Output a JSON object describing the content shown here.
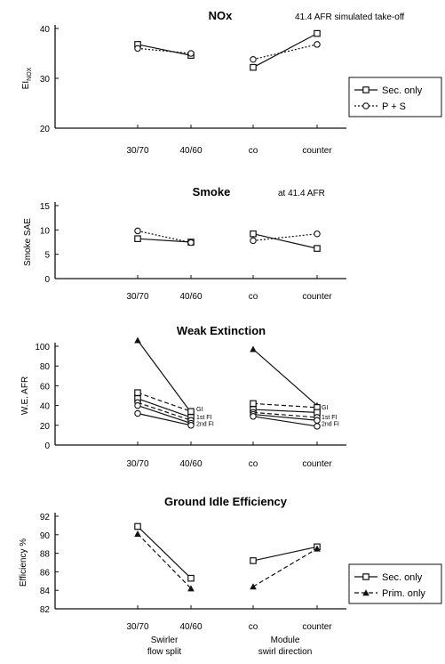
{
  "chart_data": [
    {
      "type": "line",
      "title": "NOx",
      "annotation": "41.4 AFR simulated take-off",
      "ylabel": "EI",
      "ylabel_sub": "NOX",
      "ylim": [
        20,
        40
      ],
      "yticks": [
        "40",
        "30",
        "20"
      ],
      "groups": [
        {
          "categories": [
            "30/70",
            "40/60"
          ]
        },
        {
          "categories": [
            "co",
            "counter"
          ]
        }
      ],
      "series": [
        {
          "name": "Sec. only",
          "marker": "square",
          "dash": "solid",
          "values": [
            [
              36.8,
              34.6
            ],
            [
              32.2,
              39.0
            ]
          ]
        },
        {
          "name": "P + S",
          "marker": "circle",
          "dash": "dotted",
          "values": [
            [
              36.0,
              35.0
            ],
            [
              33.8,
              36.8
            ]
          ]
        }
      ],
      "legend": "right"
    },
    {
      "type": "line",
      "title": "Smoke",
      "annotation": "at 41.4 AFR",
      "ylabel": "Smoke SAE",
      "ylim": [
        0,
        15
      ],
      "yticks": [
        "15",
        "10",
        "5",
        "0"
      ],
      "groups": [
        {
          "categories": [
            "30/70",
            "40/60"
          ]
        },
        {
          "categories": [
            "co",
            "counter"
          ]
        }
      ],
      "series": [
        {
          "marker": "square",
          "dash": "solid",
          "values": [
            [
              8.2,
              7.5
            ],
            [
              9.2,
              6.2
            ]
          ]
        },
        {
          "marker": "circle",
          "dash": "dotted",
          "values": [
            [
              9.8,
              7.4
            ],
            [
              7.8,
              9.2
            ]
          ]
        }
      ]
    },
    {
      "type": "line",
      "title": "Weak Extinction",
      "ylabel": "W.E. AFR",
      "ylim": [
        0,
        100
      ],
      "yticks": [
        "100",
        "80",
        "60",
        "40",
        "20",
        "0"
      ],
      "groups": [
        {
          "categories": [
            "30/70",
            "40/60"
          ]
        },
        {
          "categories": [
            "co",
            "counter"
          ]
        }
      ],
      "end_labels": [
        "GI",
        "1st FI",
        "2nd FI"
      ],
      "series": [
        {
          "marker": "triangle",
          "dash": "solid",
          "values": [
            [
              106,
              33
            ],
            [
              97,
              40
            ]
          ]
        },
        {
          "marker": "square",
          "dash": "dashed",
          "values": [
            [
              53,
              34
            ],
            [
              42,
              38
            ]
          ]
        },
        {
          "marker": "square",
          "dash": "solid",
          "values": [
            [
              47,
              28
            ],
            [
              36,
              33
            ]
          ]
        },
        {
          "marker": "circle",
          "dash": "dashed",
          "values": [
            [
              43,
              25
            ],
            [
              33,
              28
            ]
          ]
        },
        {
          "marker": "circle",
          "dash": "solid",
          "values": [
            [
              40,
              22
            ],
            [
              31,
              25
            ]
          ]
        },
        {
          "marker": "circle",
          "dash": "solid",
          "values": [
            [
              32,
              20
            ],
            [
              29,
              19
            ]
          ]
        }
      ]
    },
    {
      "type": "line",
      "title": "Ground Idle Efficiency",
      "ylabel": "Efficiency %",
      "ylim": [
        82,
        92
      ],
      "yticks": [
        "92",
        "90",
        "88",
        "86",
        "84",
        "82"
      ],
      "groups": [
        {
          "categories": [
            "30/70",
            "40/60"
          ],
          "label": [
            "Swirler",
            "flow split"
          ]
        },
        {
          "categories": [
            "co",
            "counter"
          ],
          "label": [
            "Module",
            "swirl direction"
          ]
        }
      ],
      "series": [
        {
          "name": "Sec. only",
          "marker": "square",
          "dash": "solid",
          "values": [
            [
              90.9,
              85.3
            ],
            [
              87.2,
              88.7
            ]
          ]
        },
        {
          "name": "Prim. only",
          "marker": "triangle",
          "dash": "dashed",
          "values": [
            [
              90.1,
              84.2
            ],
            [
              84.4,
              88.5
            ]
          ]
        }
      ],
      "legend": "right"
    }
  ]
}
